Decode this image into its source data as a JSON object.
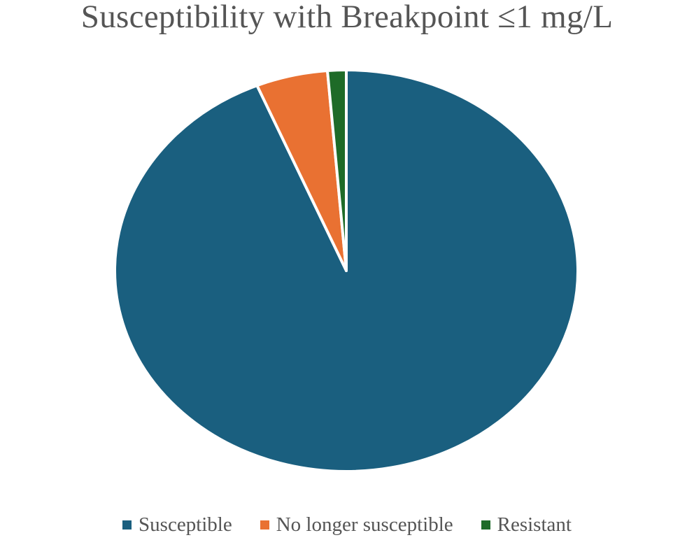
{
  "chart_data": {
    "type": "pie",
    "title": "Susceptibility with Breakpoint ≤1 mg/L",
    "legend_position": "bottom",
    "categories": [
      "Susceptible",
      "No longer susceptible",
      "Resistant"
    ],
    "values": [
      93.7,
      5.0,
      1.3
    ],
    "colors": [
      "#1a5f7f",
      "#e97132",
      "#1e6b28"
    ]
  }
}
